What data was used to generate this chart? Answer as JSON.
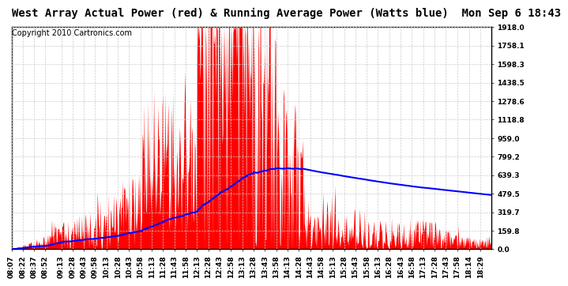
{
  "title": "West Array Actual Power (red) & Running Average Power (Watts blue)  Mon Sep 6 18:43",
  "copyright": "Copyright 2010 Cartronics.com",
  "ylabel_values": [
    0.0,
    159.8,
    319.7,
    479.5,
    639.3,
    799.2,
    959.0,
    1118.8,
    1278.6,
    1438.5,
    1598.3,
    1758.1,
    1918.0
  ],
  "ymax": 1918.0,
  "ymin": 0.0,
  "x_tick_labels": [
    "08:07",
    "08:22",
    "08:37",
    "08:52",
    "09:13",
    "09:28",
    "09:43",
    "09:58",
    "10:13",
    "10:28",
    "10:43",
    "10:58",
    "11:13",
    "11:28",
    "11:43",
    "11:58",
    "12:13",
    "12:28",
    "12:43",
    "12:58",
    "13:13",
    "13:28",
    "13:43",
    "13:58",
    "14:13",
    "14:28",
    "14:43",
    "14:58",
    "15:13",
    "15:28",
    "15:43",
    "15:58",
    "16:13",
    "16:28",
    "16:43",
    "16:58",
    "17:13",
    "17:28",
    "17:43",
    "17:58",
    "18:14",
    "18:29"
  ],
  "bg_color": "#ffffff",
  "fill_color": "#ff0000",
  "line_color": "#0000ff",
  "grid_color": "#cccccc",
  "title_fontsize": 10,
  "copyright_fontsize": 7,
  "tick_fontsize": 6.5
}
